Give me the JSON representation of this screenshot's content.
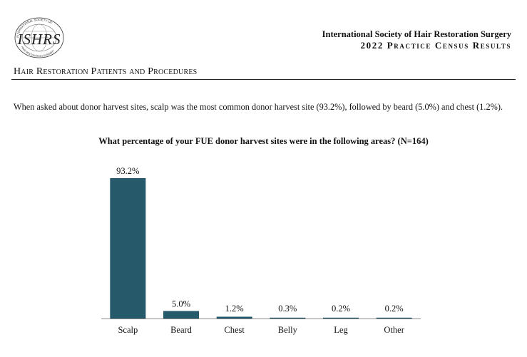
{
  "header": {
    "logo_text": "ISHRS",
    "logo_ring_text_top": "INTERNATIONAL SOCIETY OF",
    "logo_ring_text_bottom": "HAIR RESTORATION SURGERY",
    "org_name": "International Society of Hair Restoration Surgery",
    "report_title": "2022 Practice Census Results"
  },
  "section_heading": "Hair Restoration Patients and Procedures",
  "summary_text": "When asked about donor harvest sites, scalp was the most common donor harvest site (93.2%), followed by beard (5.0%) and chest (1.2%).",
  "chart_title": "What percentage of your FUE donor harvest sites were in the following areas? (N=164)",
  "chart_data": {
    "type": "bar",
    "title": "What percentage of your FUE donor harvest sites were in the following areas? (N=164)",
    "categories": [
      "Scalp",
      "Beard",
      "Chest",
      "Belly",
      "Leg",
      "Other"
    ],
    "values": [
      93.2,
      5.0,
      1.2,
      0.3,
      0.2,
      0.2
    ],
    "value_labels": [
      "93.2%",
      "5.0%",
      "1.2%",
      "0.3%",
      "0.2%",
      "0.2%"
    ],
    "xlabel": "",
    "ylabel": "",
    "ylim": [
      0,
      93.2
    ],
    "grid": false,
    "legend": "none",
    "bar_color": "#265a6b"
  }
}
